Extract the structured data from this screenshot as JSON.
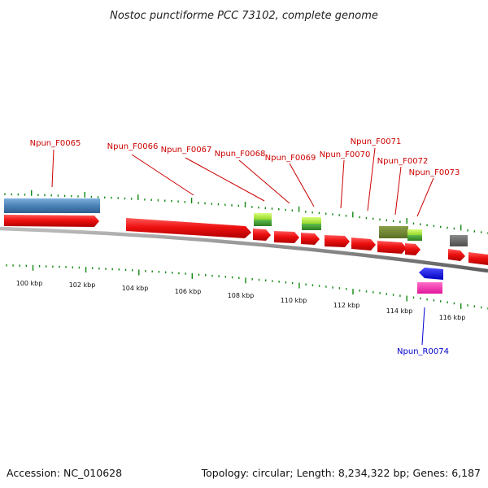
{
  "title": "Nostoc punctiforme PCC 73102, complete genome",
  "footer": {
    "accession": "Accession: NC_010628",
    "summary": "Topology: circular; Length: 8,234,322 bp; Genes: 6,187"
  },
  "colors": {
    "cds": "#ee1111",
    "cds_dark": "#b00000",
    "rna_label": "#0000cc",
    "gene_label": "#cc0000",
    "scale_tick": "#118811",
    "backbone": "#888888"
  },
  "scale": {
    "labels": [
      "100 kbp",
      "102 kbp",
      "104 kbp",
      "106 kbp",
      "108 kbp",
      "110 kbp",
      "112 kbp",
      "114 kbp",
      "116 kbp"
    ]
  },
  "genes": [
    {
      "label": "Npun_F0065",
      "strand": "+"
    },
    {
      "label": "Npun_F0066",
      "strand": "+"
    },
    {
      "label": "Npun_F0067",
      "strand": "+"
    },
    {
      "label": "Npun_F0068",
      "strand": "+"
    },
    {
      "label": "Npun_F0069",
      "strand": "+"
    },
    {
      "label": "Npun_F0070",
      "strand": "+"
    },
    {
      "label": "Npun_F0071",
      "strand": "+"
    },
    {
      "label": "Npun_F0072",
      "strand": "+"
    },
    {
      "label": "Npun_F0073",
      "strand": "+"
    },
    {
      "label": "Npun_R0074",
      "strand": "-"
    }
  ]
}
